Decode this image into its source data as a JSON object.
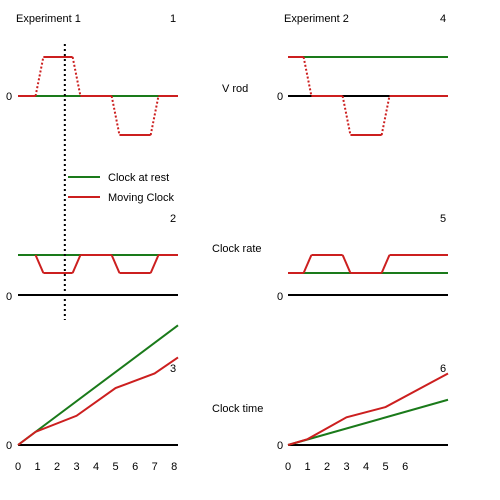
{
  "colors": {
    "rest": "#1a7a1a",
    "moving": "#cc1f1f",
    "axis": "#000000",
    "background": "#ffffff"
  },
  "row_labels": [
    "V rod",
    "Clock rate",
    "Clock time"
  ],
  "legend": {
    "rest_label": "Clock at rest",
    "moving_label": "Moving Clock"
  },
  "zero_label": "0",
  "experiments": [
    {
      "title": "Experiment 1",
      "panel_numbers": [
        "1",
        "2",
        "3"
      ],
      "x_ticks": [
        {
          "label": "0",
          "t": 0
        },
        {
          "label": "1",
          "t": 1
        },
        {
          "label": "2",
          "t": 2
        },
        {
          "label": "3",
          "t": 3
        },
        {
          "label": "4",
          "t": 4
        },
        {
          "label": "5",
          "t": 5
        },
        {
          "label": "6",
          "t": 6
        },
        {
          "label": "7",
          "t": 7
        },
        {
          "label": "8",
          "t": 8
        }
      ],
      "marker_t": 2.4,
      "v_rod": {
        "rest": [
          [
            0,
            0
          ],
          [
            8.2,
            0
          ]
        ],
        "moving": [
          [
            0,
            0
          ],
          [
            0.9,
            0
          ],
          [
            1.3,
            1
          ],
          [
            2.8,
            1
          ],
          [
            3.2,
            0
          ],
          [
            4.8,
            0
          ],
          [
            5.2,
            -1
          ],
          [
            6.8,
            -1
          ],
          [
            7.2,
            0
          ],
          [
            8.2,
            0
          ]
        ]
      },
      "clock_rate": {
        "rest": [
          [
            0,
            1
          ],
          [
            8.2,
            1
          ]
        ],
        "moving": [
          [
            0.9,
            1
          ],
          [
            1.3,
            0.55
          ],
          [
            2.8,
            0.55
          ],
          [
            3.2,
            1
          ],
          [
            4.8,
            1
          ],
          [
            5.2,
            0.55
          ],
          [
            6.8,
            0.55
          ],
          [
            7.2,
            1
          ],
          [
            8.2,
            1
          ]
        ]
      },
      "clock_time": {
        "rest": [
          [
            0,
            0
          ],
          [
            8.2,
            8.2
          ]
        ],
        "moving": [
          [
            0,
            0
          ],
          [
            0.9,
            0.9
          ],
          [
            3.0,
            2.0
          ],
          [
            5.0,
            3.9
          ],
          [
            7.0,
            4.9
          ],
          [
            8.2,
            6.0
          ]
        ]
      }
    },
    {
      "title": "Experiment 2",
      "panel_numbers": [
        "4",
        "5",
        "6"
      ],
      "x_ticks": [
        {
          "label": "0",
          "t": 0
        },
        {
          "label": "1",
          "t": 1
        },
        {
          "label": "2",
          "t": 2
        },
        {
          "label": "3",
          "t": 3
        },
        {
          "label": "4",
          "t": 4
        },
        {
          "label": "5",
          "t": 5
        },
        {
          "label": "6",
          "t": 6
        }
      ],
      "v_rod": {
        "rest": [
          [
            0,
            1
          ],
          [
            8.2,
            1
          ]
        ],
        "moving": [
          [
            0,
            1
          ],
          [
            0.8,
            1
          ],
          [
            1.2,
            0
          ],
          [
            2.8,
            0
          ],
          [
            3.2,
            -1
          ],
          [
            4.8,
            -1
          ],
          [
            5.2,
            0
          ],
          [
            8.2,
            0
          ]
        ]
      },
      "clock_rate": {
        "rest": [
          [
            0,
            0.55
          ],
          [
            8.2,
            0.55
          ]
        ],
        "moving": [
          [
            0,
            0.55
          ],
          [
            0.8,
            0.55
          ],
          [
            1.2,
            1
          ],
          [
            2.8,
            1
          ],
          [
            3.2,
            0.55
          ],
          [
            4.8,
            0.55
          ],
          [
            5.2,
            1
          ],
          [
            8.2,
            1
          ]
        ]
      },
      "clock_time": {
        "rest": [
          [
            0,
            0
          ],
          [
            8.2,
            3.1
          ]
        ],
        "moving": [
          [
            0,
            0
          ],
          [
            1.0,
            0.4
          ],
          [
            3.0,
            1.9
          ],
          [
            5.0,
            2.6
          ],
          [
            8.2,
            4.9
          ]
        ]
      }
    }
  ]
}
